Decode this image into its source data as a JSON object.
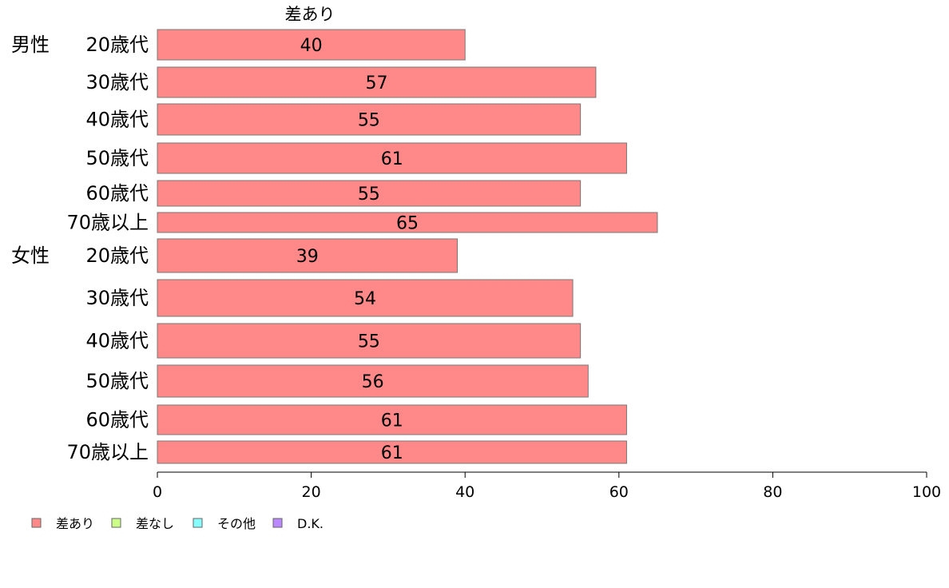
{
  "chart_data": {
    "type": "bar",
    "orientation": "horizontal",
    "series_header": "差あり",
    "groups": [
      {
        "label": "男性",
        "categories": [
          "20歳代",
          "30歳代",
          "40歳代",
          "50歳代",
          "60歳代",
          "70歳以上"
        ]
      },
      {
        "label": "女性",
        "categories": [
          "20歳代",
          "30歳代",
          "40歳代",
          "50歳代",
          "60歳代",
          "70歳以上"
        ]
      }
    ],
    "series": [
      {
        "name": "差あり",
        "color": "#ff8888",
        "values": [
          40,
          57,
          55,
          61,
          55,
          65,
          39,
          54,
          55,
          56,
          61,
          61
        ],
        "labels": [
          "40",
          "57",
          "55",
          "61",
          "55",
          "65",
          "39",
          "54",
          "55",
          "56",
          "61",
          "61"
        ]
      }
    ],
    "xlim": [
      0,
      100
    ],
    "xticks": [
      0,
      20,
      40,
      60,
      80,
      100
    ],
    "xtick_labels": [
      "0",
      "20",
      "40",
      "60",
      "80",
      "100"
    ],
    "grid": false,
    "legend": {
      "position": "bottom-left",
      "entries": [
        {
          "label": "差あり",
          "color": "#ff8888"
        },
        {
          "label": "差なし",
          "color": "#ccff88"
        },
        {
          "label": "その他",
          "color": "#88ffff"
        },
        {
          "label": "D.K.",
          "color": "#bb88ff"
        }
      ]
    }
  }
}
